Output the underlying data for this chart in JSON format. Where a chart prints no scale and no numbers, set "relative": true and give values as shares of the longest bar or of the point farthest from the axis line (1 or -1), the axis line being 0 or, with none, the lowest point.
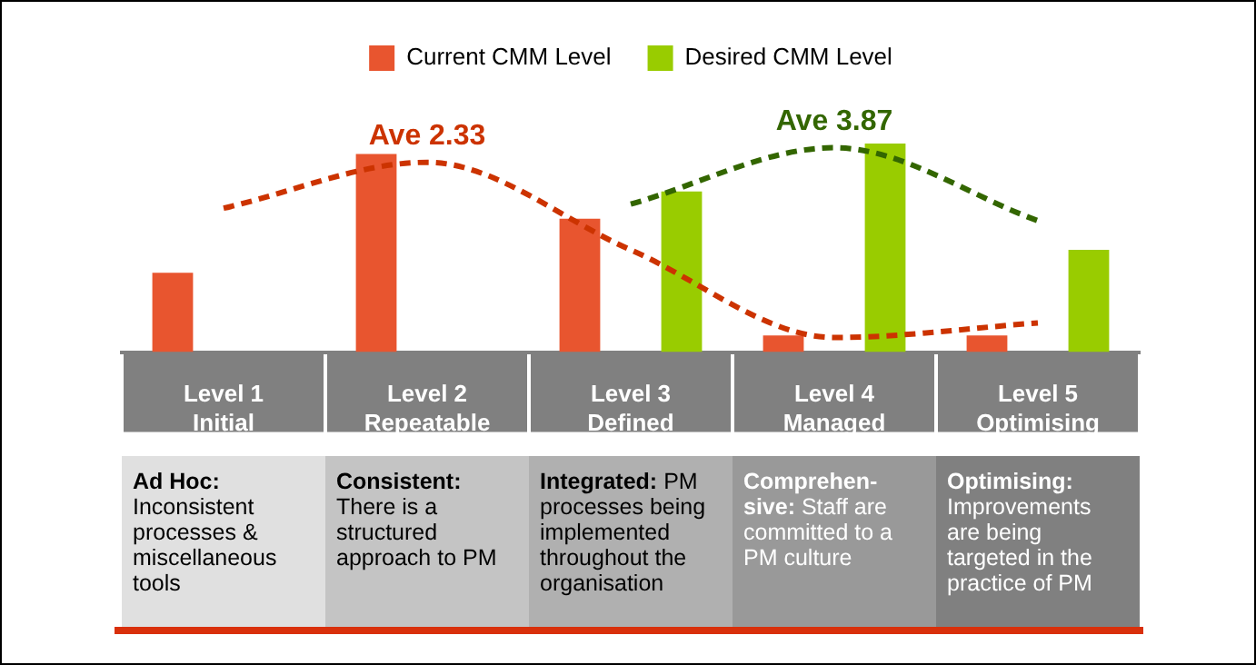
{
  "chart_data": {
    "type": "bar",
    "relative": true,
    "legend": "top",
    "categories": [
      "Level 1\nInitial",
      "Level 2\nRepeatable",
      "Level 3\nDefined",
      "Level 4\nManaged",
      "Level 5\nOptimising"
    ],
    "series": [
      {
        "name": "Current CMM Level",
        "color": "#e8552f",
        "values": [
          0.38,
          0.95,
          0.64,
          0.08,
          0.08
        ]
      },
      {
        "name": "Desired CMM Level",
        "color": "#99cc00",
        "values": [
          null,
          null,
          0.77,
          1,
          0.49
        ]
      },
      {
        "type": "line",
        "line_style": "dashed",
        "color": "#cc3300",
        "values": [
          0.69,
          0.91,
          0.49,
          0.07,
          0.14
        ]
      },
      {
        "type": "line",
        "line_style": "dashed",
        "color": "#336600",
        "values": [
          null,
          null,
          0.71,
          0.98,
          0.63
        ]
      }
    ],
    "annotations": [
      "Ave 2.33",
      "Ave 3.87",
      "Ad Hoc: Inconsistent processes & miscellaneous tools",
      "Consistent: There is a structured approach to PM",
      "Integrated:  PM processes being implemented\n throughout the organisation",
      "Comprehen-\nsive:  Staff are committed to a PM culture",
      "Optimising: Improvements are being targeted in the practice of PM"
    ]
  }
}
